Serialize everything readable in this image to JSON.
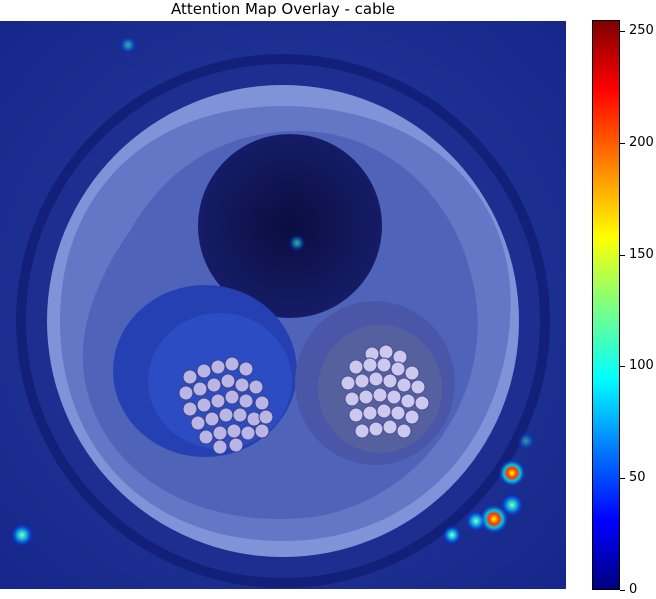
{
  "title": "Attention Map Overlay - cable",
  "colorbar": {
    "min": 0,
    "max": 255,
    "ticks": [
      "0",
      "50",
      "100",
      "150",
      "200",
      "250"
    ],
    "colormap": [
      "#00007f",
      "#0000ff",
      "#007fff",
      "#00ffff",
      "#7fff7f",
      "#ffff00",
      "#ff7f00",
      "#ff0000",
      "#7f0000"
    ]
  },
  "colors": {
    "background_overlay": "#1a2f8f",
    "sheath": "#8a9fe0",
    "dark_core": "#0b0f4a",
    "core_ring": "#2a45b0",
    "strands": "#c8c8f0"
  }
}
